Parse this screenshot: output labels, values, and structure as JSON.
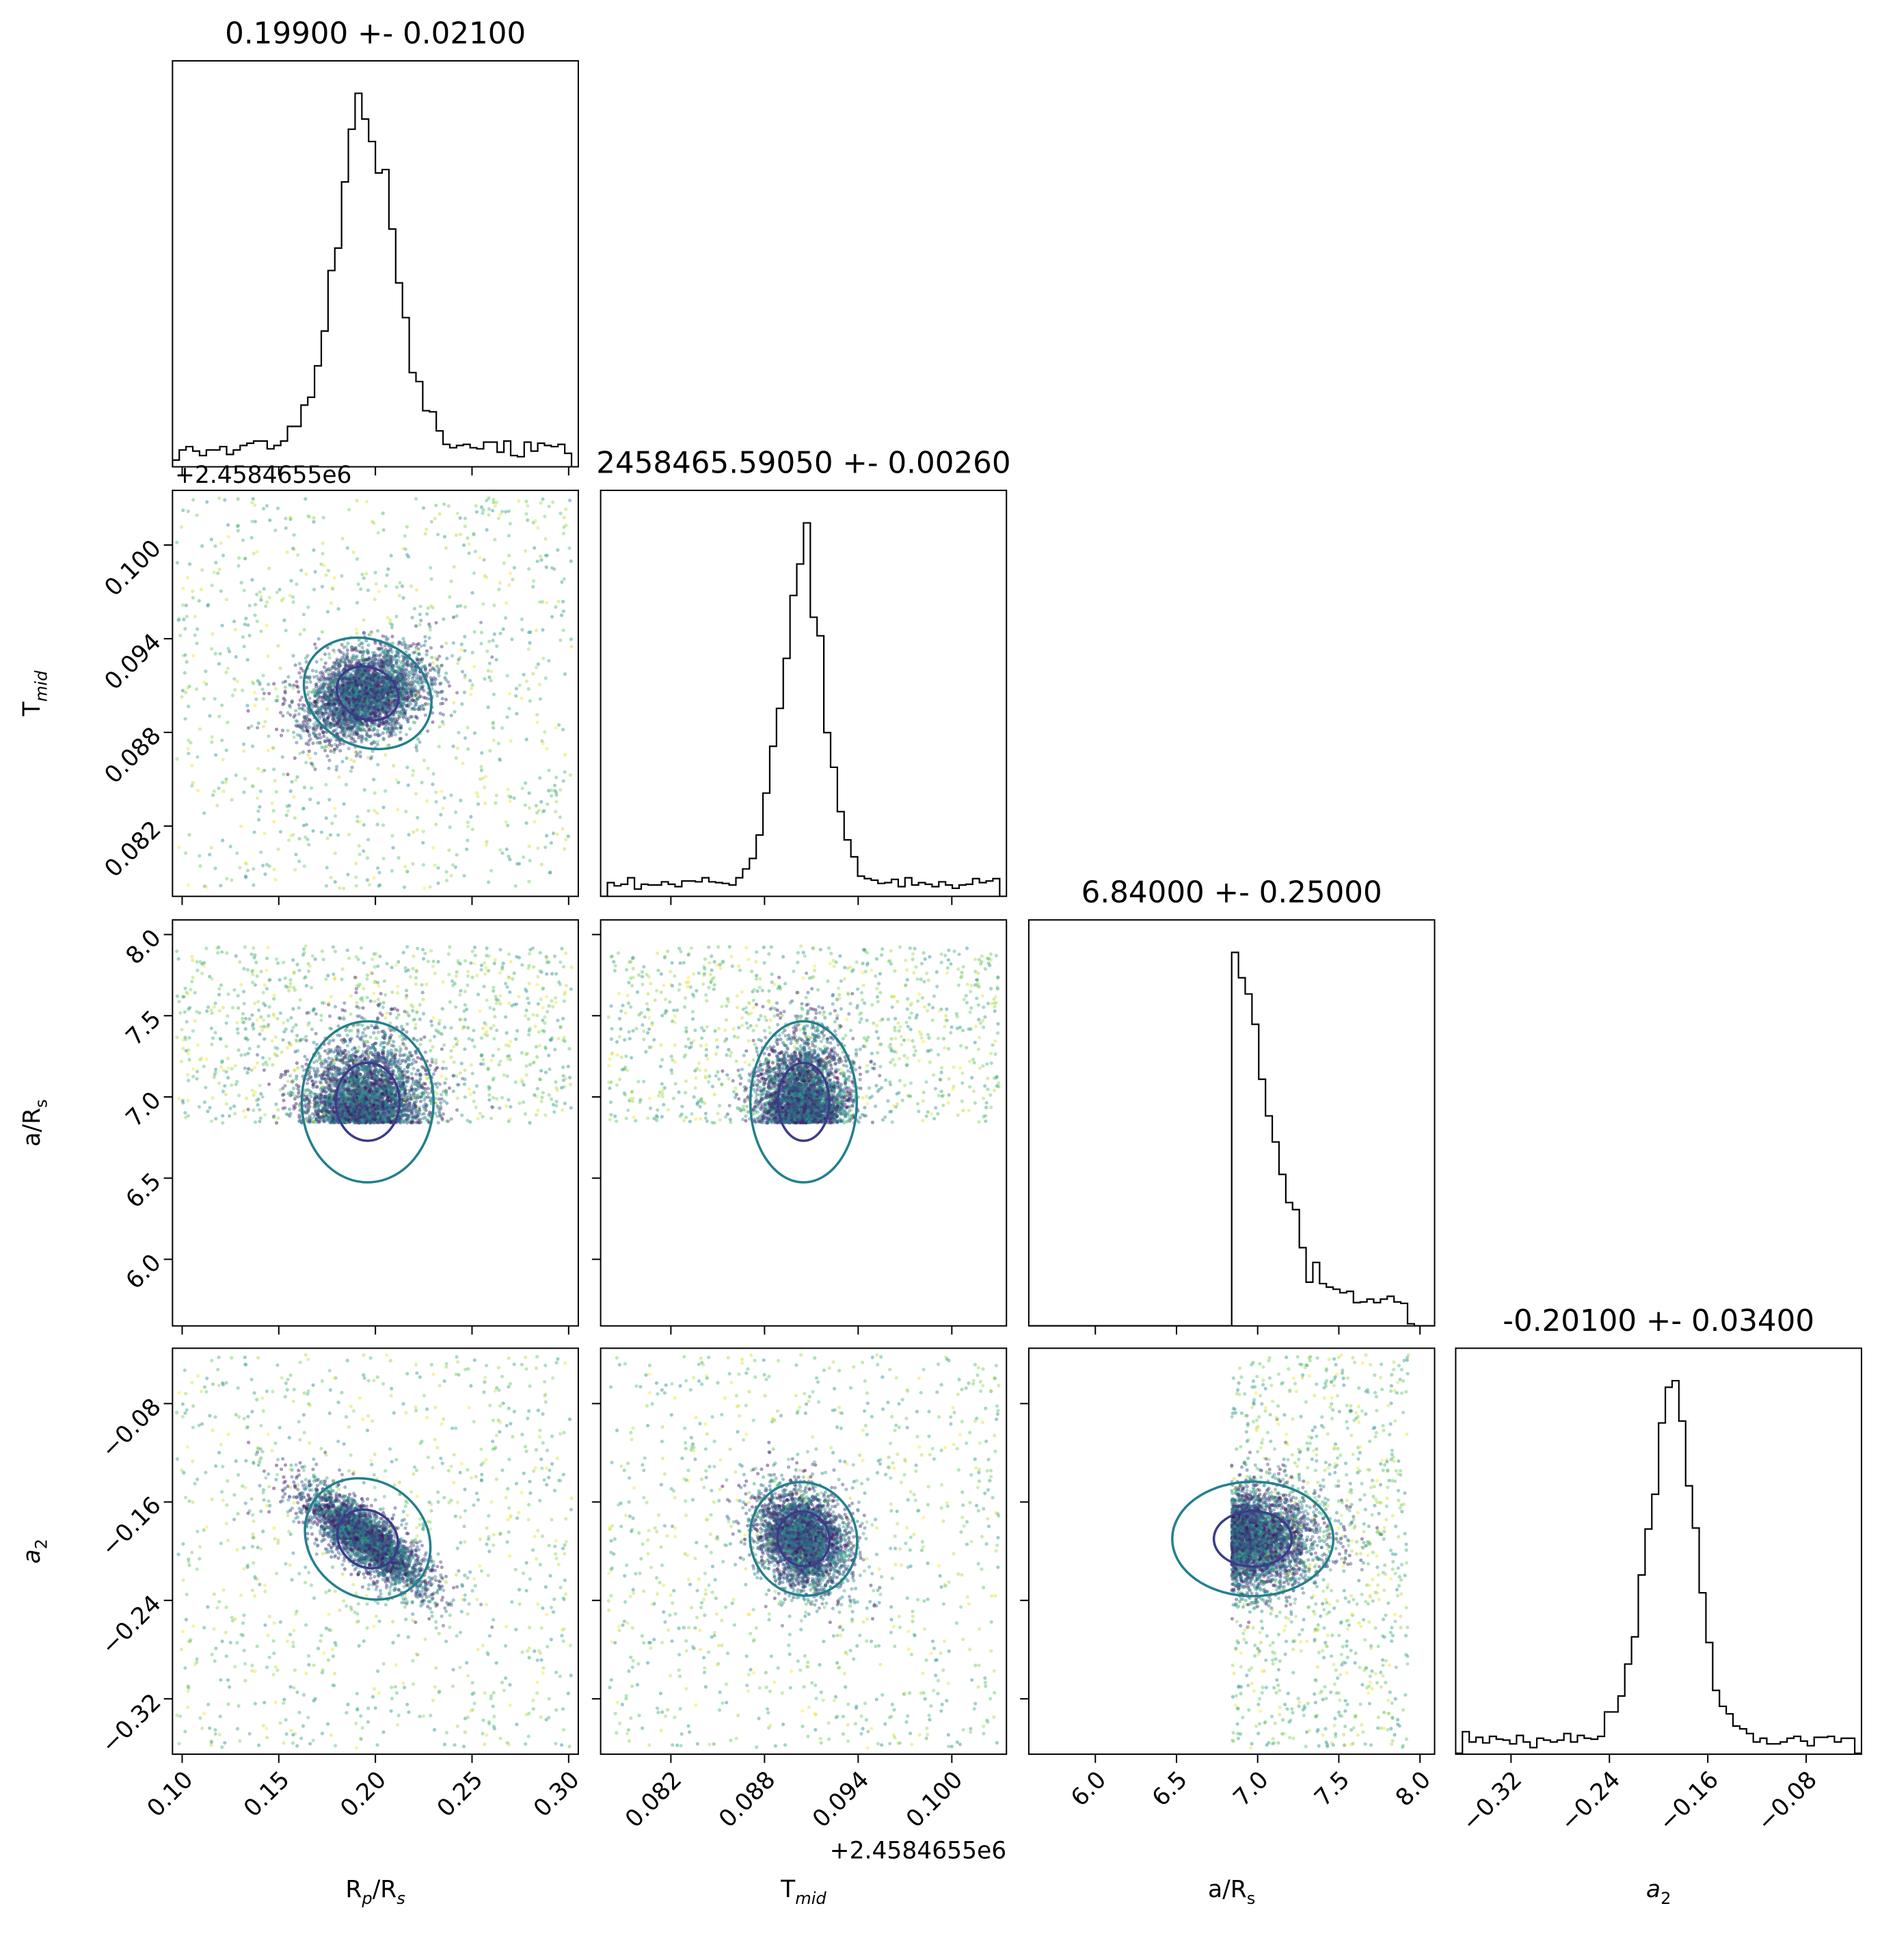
{
  "chart_data": {
    "type": "scatter",
    "plot_kind": "corner",
    "parameters": [
      {
        "key": "rprs",
        "label": "R",
        "sub": "p",
        "suffix": "/R",
        "suffix_sub": "s",
        "italic_sub": true,
        "range": [
          0.095,
          0.305
        ],
        "ticks": [
          0.1,
          0.15,
          0.2,
          0.25,
          0.3
        ],
        "tick_labels": [
          "0.10",
          "0.15",
          "0.20",
          "0.25",
          "0.30"
        ]
      },
      {
        "key": "tmid",
        "label": "T",
        "sub": "mid",
        "suffix": "",
        "suffix_sub": "",
        "italic_sub": true,
        "range": [
          0.0775,
          0.1035
        ],
        "ticks": [
          0.082,
          0.088,
          0.094,
          0.1
        ],
        "tick_labels": [
          "0.082",
          "0.088",
          "0.094",
          "0.100"
        ],
        "offset_text": "+2.4584655e6"
      },
      {
        "key": "ars",
        "label": "a/R",
        "sub": "s",
        "suffix": "",
        "suffix_sub": "",
        "italic_sub": false,
        "range": [
          5.59,
          8.09
        ],
        "ticks": [
          6.0,
          6.5,
          7.0,
          7.5,
          8.0
        ],
        "tick_labels": [
          "6.0",
          "6.5",
          "7.0",
          "7.5",
          "8.0"
        ]
      },
      {
        "key": "a2",
        "label": "a",
        "sub": "2",
        "suffix": "",
        "suffix_sub": "",
        "italic_sub": false,
        "italic_main": true,
        "range": [
          -0.365,
          -0.035
        ],
        "ticks": [
          -0.32,
          -0.24,
          -0.16,
          -0.08
        ],
        "tick_labels": [
          "−0.32",
          "−0.24",
          "−0.16",
          "−0.08"
        ]
      }
    ],
    "titles": [
      "0.19900 +- 0.02100",
      "2458465.59050 +- 0.00260",
      "6.84000 +- 0.25000",
      "-0.20100 +- 0.03400"
    ],
    "marginals": {
      "rprs": {
        "mean": 0.199,
        "std": 0.021,
        "shape": "peaked"
      },
      "tmid": {
        "mean": 0.0905,
        "std": 0.0026,
        "shape": "peaked"
      },
      "ars": {
        "mean": 6.84,
        "std": 0.25,
        "shape": "truncated-left",
        "lower_bound": 6.84,
        "upper_bound": 7.93
      },
      "a2": {
        "mean": -0.201,
        "std": 0.034,
        "shape": "peaked"
      }
    },
    "contour_levels": [
      "inner",
      "outer",
      "outermost"
    ],
    "colormap": [
      "#440154",
      "#3b528b",
      "#21918c",
      "#5ec962",
      "#fde725"
    ],
    "contour_colors": {
      "inner": "#3b3b8c",
      "outer": "#23808c",
      "outermost": "#fde725"
    },
    "grid": false,
    "legend": "none"
  }
}
